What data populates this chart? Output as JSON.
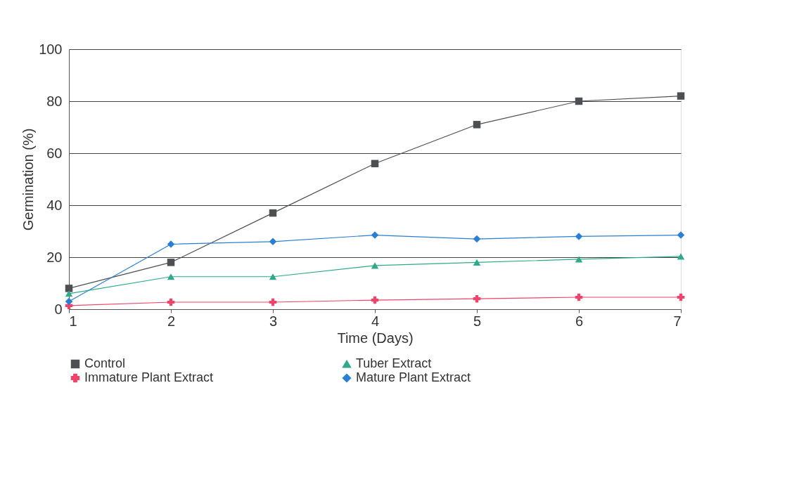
{
  "chart_data": {
    "type": "line",
    "xlabel": "Time (Days)",
    "ylabel": "Germination (%)",
    "x": [
      1,
      2,
      3,
      4,
      5,
      6,
      7
    ],
    "xlim": [
      1,
      7
    ],
    "xticks": [
      1,
      2,
      3,
      4,
      5,
      6,
      7
    ],
    "ylim": [
      0,
      100
    ],
    "yticks": [
      0,
      20,
      40,
      60,
      80,
      100
    ],
    "grid": "y",
    "legend": "bottom",
    "series": [
      {
        "name": "Control",
        "color": "#4d4f53",
        "marker": "square",
        "values": [
          8,
          18,
          37,
          56,
          71,
          80,
          82
        ]
      },
      {
        "name": "Tuber Extract",
        "color": "#2eaa8a",
        "marker": "triangle",
        "values": [
          6,
          12.5,
          12.5,
          16.8,
          18,
          19.2,
          20.3
        ]
      },
      {
        "name": "Immature Plant Extract",
        "color": "#f0436a",
        "marker": "cross",
        "values": [
          1.4,
          2.7,
          2.7,
          3.5,
          4,
          4.6,
          4.6
        ]
      },
      {
        "name": "Mature Plant Extract",
        "color": "#2a7fd4",
        "marker": "diamond",
        "values": [
          3,
          25,
          26,
          28.5,
          27,
          28,
          28.5
        ]
      }
    ]
  }
}
